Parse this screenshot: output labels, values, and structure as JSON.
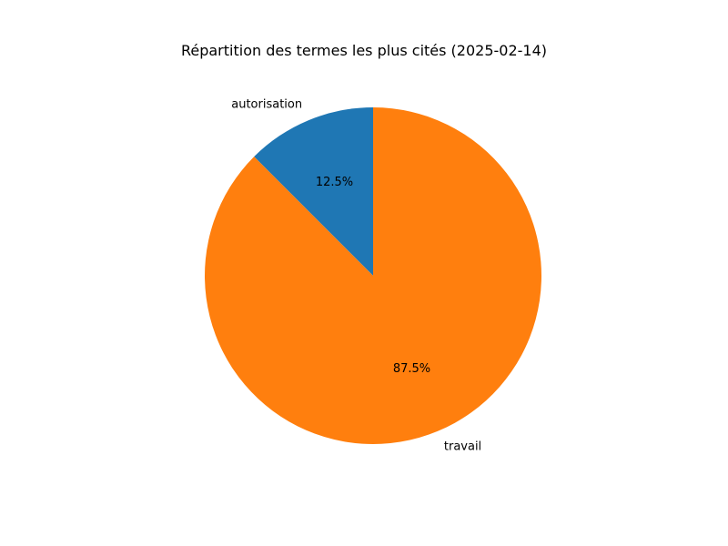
{
  "chart_data": {
    "type": "pie",
    "title": "Répartition des termes les plus cités (2025-02-14)",
    "start_angle_deg": 90,
    "direction": "counterclockwise",
    "slices": [
      {
        "label": "autorisation",
        "value": 12.5,
        "pct_label": "12.5%",
        "color": "#1f77b4"
      },
      {
        "label": "travail",
        "value": 87.5,
        "pct_label": "87.5%",
        "color": "#ff7f0e"
      }
    ]
  }
}
